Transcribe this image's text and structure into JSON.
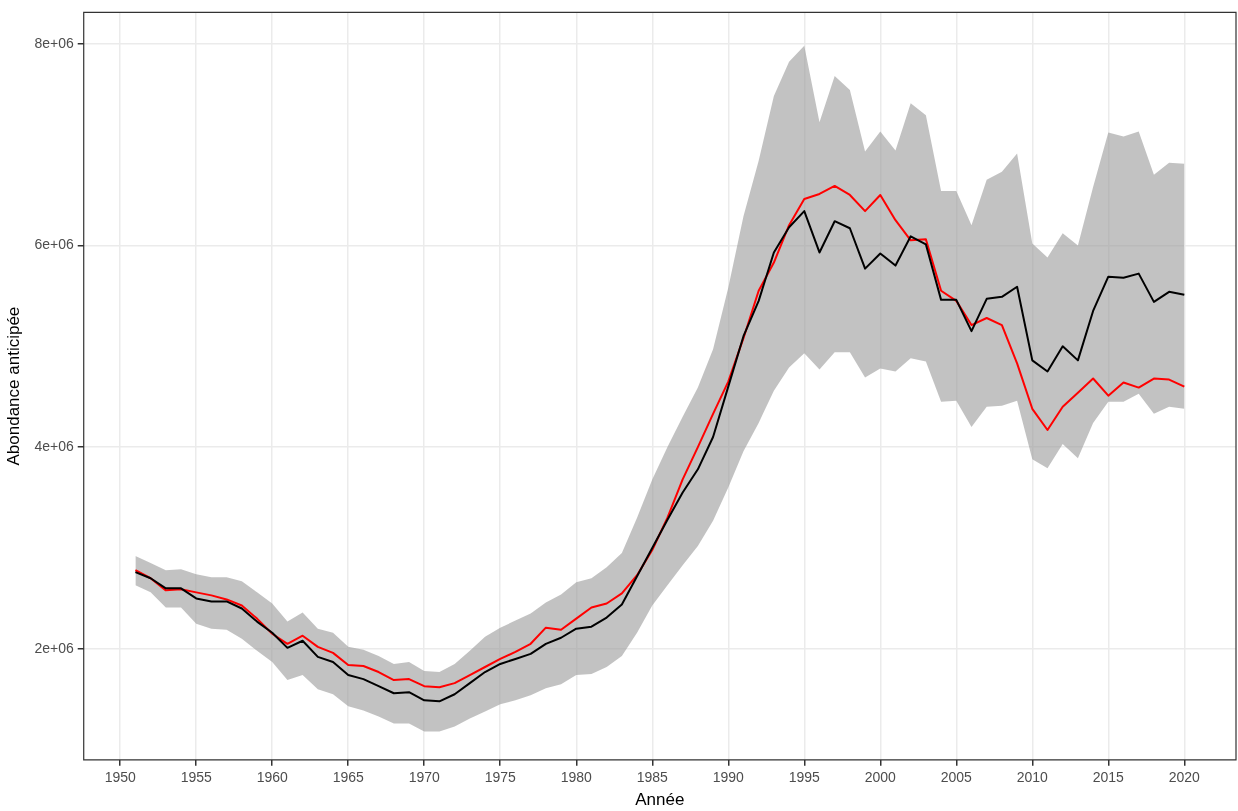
{
  "chart_data": {
    "type": "line",
    "xlabel": "Année",
    "ylabel": "Abondance anticipée",
    "x": [
      1951,
      1952,
      1953,
      1954,
      1955,
      1956,
      1957,
      1958,
      1959,
      1960,
      1961,
      1962,
      1963,
      1964,
      1965,
      1966,
      1967,
      1968,
      1969,
      1970,
      1971,
      1972,
      1973,
      1974,
      1975,
      1976,
      1977,
      1978,
      1979,
      1980,
      1981,
      1982,
      1983,
      1984,
      1985,
      1986,
      1987,
      1988,
      1989,
      1990,
      1991,
      1992,
      1993,
      1994,
      1995,
      1996,
      1997,
      1998,
      1999,
      2000,
      2001,
      2002,
      2003,
      2004,
      2005,
      2006,
      2007,
      2008,
      2009,
      2010,
      2011,
      2012,
      2013,
      2014,
      2015,
      2016,
      2017,
      2018,
      2019,
      2020
    ],
    "series": [
      {
        "color": "#000000",
        "values": [
          2760000,
          2700000,
          2600000,
          2600000,
          2500000,
          2470000,
          2470000,
          2400000,
          2270000,
          2160000,
          2010000,
          2080000,
          1920000,
          1870000,
          1740000,
          1700000,
          1630000,
          1560000,
          1570000,
          1490000,
          1480000,
          1550000,
          1660000,
          1770000,
          1850000,
          1900000,
          1950000,
          2050000,
          2110000,
          2200000,
          2220000,
          2310000,
          2440000,
          2720000,
          3000000,
          3280000,
          3550000,
          3780000,
          4100000,
          4600000,
          5100000,
          5450000,
          5930000,
          6180000,
          6340000,
          5930000,
          6240000,
          6170000,
          5770000,
          5920000,
          5800000,
          6090000,
          6010000,
          5460000,
          5460000,
          5150000,
          5470000,
          5490000,
          5590000,
          4860000,
          4750000,
          5000000,
          4860000,
          5350000,
          5690000,
          5680000,
          5720000,
          5440000,
          5540000,
          5510000
        ],
        "lower": [
          2630000,
          2560000,
          2410000,
          2410000,
          2250000,
          2200000,
          2190000,
          2100000,
          1980000,
          1870000,
          1690000,
          1740000,
          1600000,
          1550000,
          1430000,
          1390000,
          1330000,
          1260000,
          1260000,
          1180000,
          1180000,
          1230000,
          1310000,
          1380000,
          1450000,
          1490000,
          1540000,
          1610000,
          1650000,
          1740000,
          1750000,
          1820000,
          1930000,
          2160000,
          2430000,
          2630000,
          2830000,
          3020000,
          3270000,
          3600000,
          3960000,
          4240000,
          4560000,
          4790000,
          4930000,
          4770000,
          4940000,
          4940000,
          4690000,
          4780000,
          4750000,
          4880000,
          4850000,
          4450000,
          4460000,
          4200000,
          4400000,
          4410000,
          4460000,
          3880000,
          3790000,
          4030000,
          3890000,
          4240000,
          4450000,
          4450000,
          4530000,
          4330000,
          4400000,
          4380000
        ],
        "upper": [
          2920000,
          2850000,
          2780000,
          2790000,
          2740000,
          2710000,
          2710000,
          2670000,
          2560000,
          2450000,
          2270000,
          2360000,
          2200000,
          2160000,
          2020000,
          1990000,
          1930000,
          1850000,
          1870000,
          1780000,
          1770000,
          1850000,
          1980000,
          2120000,
          2210000,
          2280000,
          2350000,
          2460000,
          2540000,
          2660000,
          2700000,
          2810000,
          2950000,
          3300000,
          3680000,
          4000000,
          4300000,
          4590000,
          4970000,
          5580000,
          6290000,
          6840000,
          7480000,
          7820000,
          7980000,
          7220000,
          7680000,
          7540000,
          6930000,
          7130000,
          6940000,
          7410000,
          7290000,
          6540000,
          6540000,
          6200000,
          6650000,
          6730000,
          6910000,
          6020000,
          5880000,
          6120000,
          6000000,
          6580000,
          7120000,
          7080000,
          7130000,
          6700000,
          6820000,
          6810000
        ]
      },
      {
        "color": "#ff0000",
        "values": [
          2780000,
          2700000,
          2580000,
          2590000,
          2560000,
          2530000,
          2490000,
          2430000,
          2300000,
          2150000,
          2050000,
          2130000,
          2020000,
          1960000,
          1840000,
          1830000,
          1770000,
          1690000,
          1700000,
          1630000,
          1620000,
          1660000,
          1740000,
          1820000,
          1900000,
          1970000,
          2050000,
          2210000,
          2190000,
          2300000,
          2410000,
          2450000,
          2550000,
          2730000,
          2980000,
          3300000,
          3680000,
          4000000,
          4330000,
          4650000,
          5080000,
          5550000,
          5830000,
          6200000,
          6460000,
          6510000,
          6590000,
          6500000,
          6340000,
          6500000,
          6250000,
          6050000,
          6060000,
          5550000,
          5450000,
          5210000,
          5280000,
          5210000,
          4830000,
          4380000,
          4170000,
          4400000,
          4540000,
          4680000,
          4510000,
          4640000,
          4590000,
          4680000,
          4670000,
          4600000
        ]
      }
    ],
    "xlim": [
      1947.6,
      2023.4
    ],
    "xticks": [
      1950,
      1955,
      1960,
      1965,
      1970,
      1975,
      1980,
      1985,
      1990,
      1995,
      2000,
      2005,
      2010,
      2015,
      2020
    ],
    "ylim": [
      900000,
      8310000
    ],
    "yticks": [
      {
        "value": 2000000,
        "label": "2e+06"
      },
      {
        "value": 4000000,
        "label": "4e+06"
      },
      {
        "value": 6000000,
        "label": "6e+06"
      },
      {
        "value": 8000000,
        "label": "8e+06"
      }
    ],
    "grid": true,
    "legend": false,
    "marker": "none",
    "line_style": "solid"
  }
}
